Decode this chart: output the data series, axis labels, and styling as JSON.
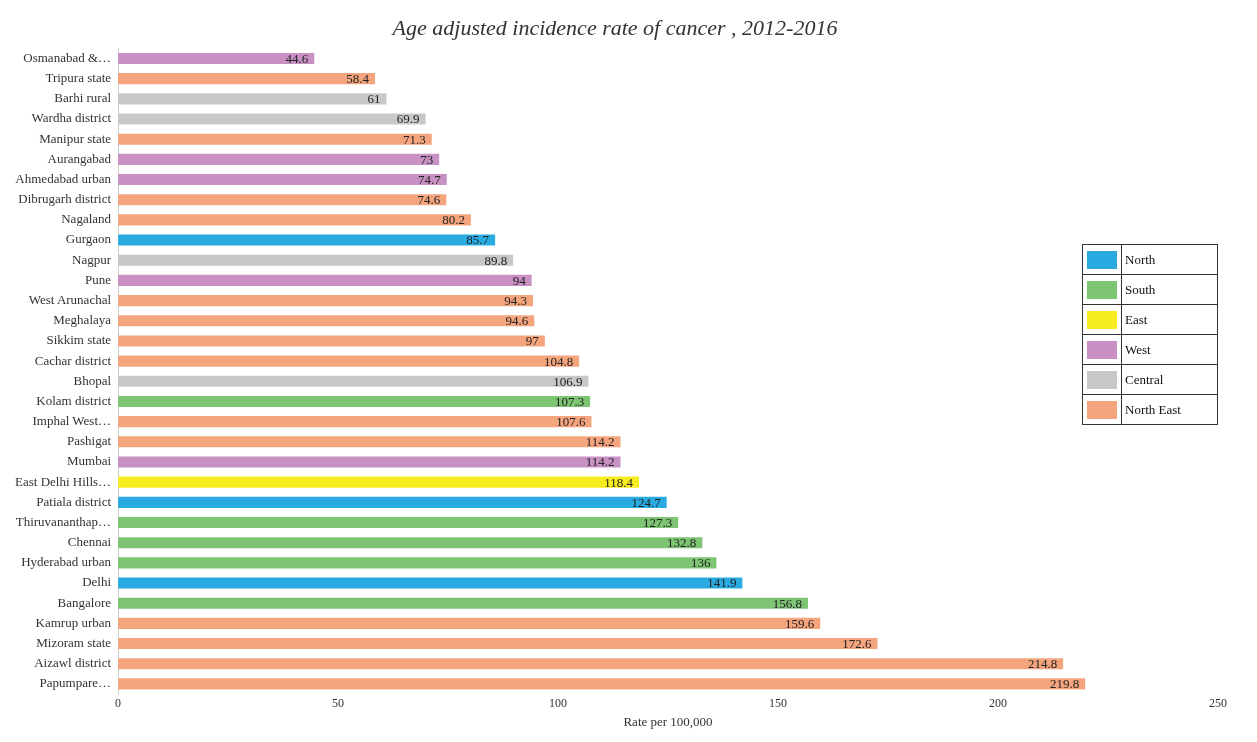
{
  "chart_data": {
    "type": "bar",
    "orientation": "horizontal",
    "title": "Age adjusted incidence rate of cancer , 2012-2016",
    "xlabel": "Rate per 100,000",
    "categories": [
      "Osmanabad &…",
      "Tripura state",
      "Barhi rural",
      "Wardha district",
      "Manipur state",
      "Aurangabad",
      "Ahmedabad urban",
      "Dibrugarh district",
      "Nagaland",
      "Gurgaon",
      "Nagpur",
      "Pune",
      "West Arunachal",
      "Meghalaya",
      "Sikkim state",
      "Cachar district",
      "Bhopal",
      "Kolam district",
      "Imphal West…",
      "Pashigat",
      "Mumbai",
      "East Delhi Hills…",
      "Patiala district",
      "Thiruvananthap…",
      "Chennai",
      "Hyderabad urban",
      "Delhi",
      "Bangalore",
      "Kamrup urban",
      "Mizoram state",
      "Aizawl district",
      "Papumpare…"
    ],
    "series": [
      {
        "name": "North",
        "color": "#29abe2",
        "values": [
          null,
          null,
          null,
          null,
          null,
          null,
          null,
          null,
          null,
          85.7,
          null,
          null,
          null,
          null,
          null,
          null,
          null,
          null,
          null,
          null,
          null,
          null,
          124.7,
          null,
          null,
          null,
          141.9,
          null,
          null,
          null,
          null,
          null
        ]
      },
      {
        "name": "South",
        "color": "#7dc473",
        "values": [
          null,
          null,
          null,
          null,
          null,
          null,
          null,
          null,
          null,
          null,
          null,
          null,
          null,
          null,
          null,
          null,
          null,
          107.3,
          null,
          null,
          null,
          null,
          null,
          127.3,
          132.8,
          136,
          null,
          156.8,
          null,
          null,
          null,
          null
        ]
      },
      {
        "name": "East",
        "color": "#f7ec1f",
        "values": [
          null,
          null,
          null,
          null,
          null,
          null,
          null,
          null,
          null,
          null,
          null,
          null,
          null,
          null,
          null,
          null,
          null,
          null,
          null,
          null,
          null,
          118.4,
          null,
          null,
          null,
          null,
          null,
          null,
          null,
          null,
          null,
          null
        ]
      },
      {
        "name": "West",
        "color": "#c990c4",
        "values": [
          44.6,
          null,
          null,
          null,
          null,
          73.0,
          74.7,
          null,
          null,
          null,
          null,
          94,
          null,
          null,
          null,
          null,
          null,
          null,
          null,
          null,
          114.2,
          null,
          null,
          null,
          null,
          null,
          null,
          null,
          null,
          null,
          null,
          null
        ]
      },
      {
        "name": "Central",
        "color": "#c8c8c8",
        "values": [
          null,
          null,
          61,
          69.9,
          null,
          null,
          null,
          null,
          null,
          null,
          89.8,
          null,
          null,
          null,
          null,
          null,
          106.9,
          null,
          null,
          null,
          null,
          null,
          null,
          null,
          null,
          null,
          null,
          null,
          null,
          null,
          null,
          null
        ]
      },
      {
        "name": "North East",
        "color": "#f4a57e",
        "values": [
          null,
          58.4,
          null,
          null,
          71.3,
          null,
          null,
          74.6,
          80.2,
          null,
          null,
          null,
          94.3,
          94.6,
          97,
          104.8,
          null,
          null,
          107.6,
          114.2,
          null,
          null,
          null,
          null,
          null,
          null,
          null,
          null,
          159.6,
          172.6,
          214.8,
          219.8
        ]
      }
    ],
    "xlim": [
      0,
      250
    ],
    "xticks": [
      0,
      50,
      100,
      150,
      200,
      250
    ],
    "grid": false,
    "legend": "right",
    "data_labels": true
  }
}
